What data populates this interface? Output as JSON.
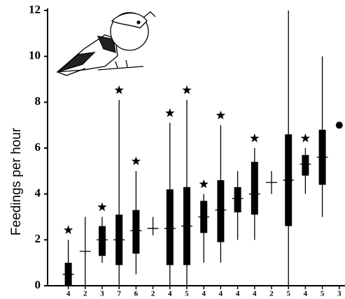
{
  "chart_data": {
    "type": "box",
    "y_label": "Feedings per hour",
    "categories": [
      "4",
      "2",
      "3",
      "7",
      "6",
      "2",
      "4",
      "5",
      "4",
      "4",
      "4",
      "4",
      "2",
      "5",
      "4",
      "5",
      "3"
    ],
    "low": [
      0,
      0,
      1.0,
      0,
      0.5,
      2.2,
      0,
      0,
      1.0,
      1.0,
      2.0,
      2.0,
      4.0,
      0,
      4.0,
      3.0,
      null
    ],
    "q1": [
      0,
      null,
      1.3,
      0.9,
      1.4,
      null,
      0.9,
      0.9,
      2.3,
      1.9,
      3.2,
      3.1,
      null,
      2.6,
      4.8,
      4.4,
      null
    ],
    "median": [
      0.5,
      1.5,
      2.0,
      2.0,
      2.4,
      2.5,
      2.5,
      2.6,
      3.0,
      3.3,
      3.8,
      4.0,
      4.5,
      4.6,
      5.3,
      5.6,
      7.0
    ],
    "q3": [
      1.0,
      null,
      2.6,
      3.1,
      3.3,
      null,
      4.2,
      4.3,
      3.7,
      4.6,
      4.3,
      5.4,
      null,
      6.6,
      5.7,
      6.8,
      null
    ],
    "high": [
      2.0,
      3.0,
      3.0,
      8.1,
      5.0,
      3.0,
      7.1,
      8.1,
      4.0,
      7.0,
      5.0,
      6.0,
      5.0,
      12.0,
      6.0,
      10.0,
      null
    ],
    "starred": [
      true,
      false,
      true,
      true,
      true,
      false,
      true,
      true,
      true,
      true,
      false,
      true,
      false,
      false,
      true,
      false,
      false
    ],
    "color": "#000000",
    "ylim": [
      0,
      12
    ],
    "yticks": [
      0,
      2,
      4,
      6,
      8,
      10,
      12
    ]
  }
}
